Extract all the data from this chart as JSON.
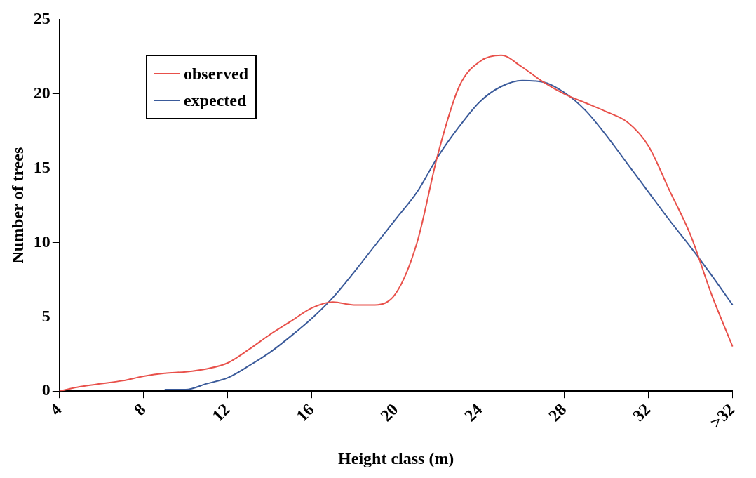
{
  "chart_data": {
    "type": "line",
    "xlabel": "Height class (m)",
    "ylabel": "Number of trees",
    "categories": [
      "4",
      null,
      null,
      null,
      "8",
      null,
      null,
      null,
      "12",
      null,
      null,
      null,
      "16",
      null,
      null,
      null,
      "20",
      null,
      null,
      null,
      "24",
      null,
      null,
      null,
      "28",
      null,
      null,
      null,
      "32",
      null,
      null,
      null,
      ">32"
    ],
    "series": [
      {
        "name": "observed",
        "color": "#e8504a",
        "values": [
          0,
          0.3,
          0.5,
          0.7,
          1.0,
          1.2,
          1.3,
          1.5,
          1.9,
          2.8,
          3.8,
          4.7,
          5.6,
          6.0,
          5.8,
          5.8,
          6.6,
          10,
          16,
          20.5,
          22.2,
          22.6,
          21.8,
          20.8,
          20,
          19.4,
          18.8,
          18.1,
          16.5,
          13.5,
          10.5,
          6.5,
          3
        ]
      },
      {
        "name": "expected",
        "color": "#3a5a9a",
        "values": [
          null,
          null,
          null,
          null,
          null,
          0.1,
          0.1,
          0.5,
          0.9,
          1.7,
          2.6,
          3.7,
          4.9,
          6.3,
          8,
          9.8,
          11.6,
          13.4,
          15.8,
          17.8,
          19.5,
          20.5,
          20.9,
          20.8,
          20.1,
          18.9,
          17.2,
          15.3,
          13.4,
          11.5,
          9.7,
          7.8,
          5.8
        ]
      }
    ],
    "ylim": [
      0,
      25
    ],
    "yticks": [
      0,
      5,
      10,
      15,
      20,
      25
    ],
    "grid": false,
    "legend": "top left",
    "marker": "none",
    "line_style": "solid"
  }
}
